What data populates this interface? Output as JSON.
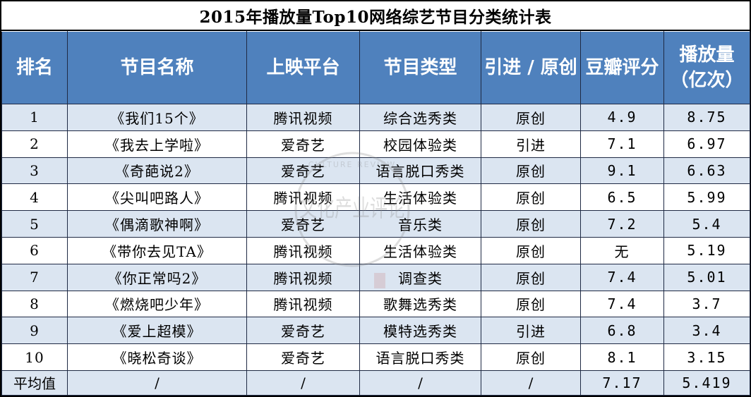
{
  "title": "2015年播放量Top10网络综艺节目分类统计表",
  "columns": [
    "排名",
    "节目名称",
    "上映平台",
    "节目类型",
    "引进 / 原创",
    "豆瓣评分",
    "播放量\n（亿次）"
  ],
  "rows": [
    [
      "1",
      "《我们15个》",
      "腾讯视频",
      "综合选秀类",
      "原创",
      "4.9",
      "8.75"
    ],
    [
      "2",
      "《我去上学啦》",
      "爱奇艺",
      "校园体验类",
      "引进",
      "7.1",
      "6.97"
    ],
    [
      "3",
      "《奇葩说2》",
      "爱奇艺",
      "语言脱口秀类",
      "原创",
      "9.1",
      "6.63"
    ],
    [
      "4",
      "《尖叫吧路人》",
      "腾讯视频",
      "生活体验类",
      "原创",
      "6.5",
      "5.99"
    ],
    [
      "5",
      "《偶滴歌神啊》",
      "爱奇艺",
      "音乐类",
      "原创",
      "7.2",
      "5.4"
    ],
    [
      "6",
      "《带你去见TA》",
      "腾讯视频",
      "生活体验类",
      "原创",
      "无",
      "5.19"
    ],
    [
      "7",
      "《你正常吗2》",
      "腾讯视频",
      "调查类",
      "原创",
      "7.4",
      "5.01"
    ],
    [
      "8",
      "《燃烧吧少年》",
      "腾讯视频",
      "歌舞选秀类",
      "原创",
      "7.4",
      "3.7"
    ],
    [
      "9",
      "《爱上超模》",
      "爱奇艺",
      "模特选秀类",
      "引进",
      "6.8",
      "3.4"
    ],
    [
      "10",
      "《晓松奇谈》",
      "爱奇艺",
      "语言脱口秀类",
      "原创",
      "8.1",
      "3.15"
    ]
  ],
  "average": [
    "平均值",
    "/",
    "/",
    "/",
    "/",
    "7.17",
    "5.419"
  ],
  "watermark": {
    "latin": "CULTURE REVIEW",
    "chars": "文化产业评论"
  },
  "colors": {
    "header_bg": "#4f81bd",
    "band_bg": "#dbe5f1",
    "header_text": "#ffffff"
  }
}
